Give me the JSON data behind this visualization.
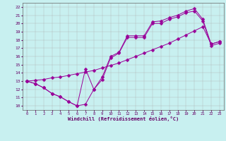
{
  "xlabel": "Windchill (Refroidissement éolien,°C)",
  "xlim": [
    -0.5,
    23.5
  ],
  "ylim": [
    9.5,
    22.5
  ],
  "xticks": [
    0,
    1,
    2,
    3,
    4,
    5,
    6,
    7,
    8,
    9,
    10,
    11,
    12,
    13,
    14,
    15,
    16,
    17,
    18,
    19,
    20,
    21,
    22,
    23
  ],
  "yticks": [
    10,
    11,
    12,
    13,
    14,
    15,
    16,
    17,
    18,
    19,
    20,
    21,
    22
  ],
  "bg_color": "#c8f0f0",
  "grid_color": "#aaaaaa",
  "line_color": "#990099",
  "marker_size": 2.5,
  "font_color": "#660066",
  "font_size_tick": 4,
  "font_size_xlabel": 5,
  "line1_x": [
    0,
    1,
    2,
    3,
    4,
    5,
    6,
    7,
    8,
    9,
    10,
    11,
    12,
    13,
    14,
    15,
    16,
    17,
    18,
    19,
    20,
    21,
    22,
    23
  ],
  "line1_y": [
    13.0,
    12.7,
    12.2,
    11.5,
    11.1,
    10.5,
    10.0,
    14.5,
    12.0,
    13.5,
    16.0,
    16.5,
    18.5,
    18.5,
    18.5,
    20.2,
    20.3,
    20.7,
    21.0,
    21.5,
    21.8,
    20.5,
    17.5,
    17.8
  ],
  "line2_x": [
    0,
    1,
    2,
    3,
    4,
    5,
    6,
    7,
    8,
    9,
    10,
    11,
    12,
    13,
    14,
    15,
    16,
    17,
    18,
    19,
    20,
    21,
    22,
    23
  ],
  "line2_y": [
    13.0,
    12.7,
    12.2,
    11.5,
    11.1,
    10.5,
    10.0,
    10.2,
    12.0,
    13.2,
    15.8,
    16.4,
    18.3,
    18.3,
    18.3,
    20.0,
    20.0,
    20.5,
    20.8,
    21.3,
    21.5,
    20.3,
    17.3,
    17.6
  ],
  "line3_x": [
    0,
    1,
    2,
    3,
    4,
    5,
    6,
    7,
    8,
    9,
    10,
    11,
    12,
    13,
    14,
    15,
    16,
    17,
    18,
    19,
    20,
    21,
    22,
    23
  ],
  "line3_y": [
    13.0,
    13.1,
    13.2,
    13.4,
    13.5,
    13.7,
    13.9,
    14.1,
    14.3,
    14.6,
    14.9,
    15.2,
    15.6,
    16.0,
    16.4,
    16.8,
    17.2,
    17.6,
    18.1,
    18.6,
    19.1,
    19.6,
    17.5,
    17.8
  ]
}
